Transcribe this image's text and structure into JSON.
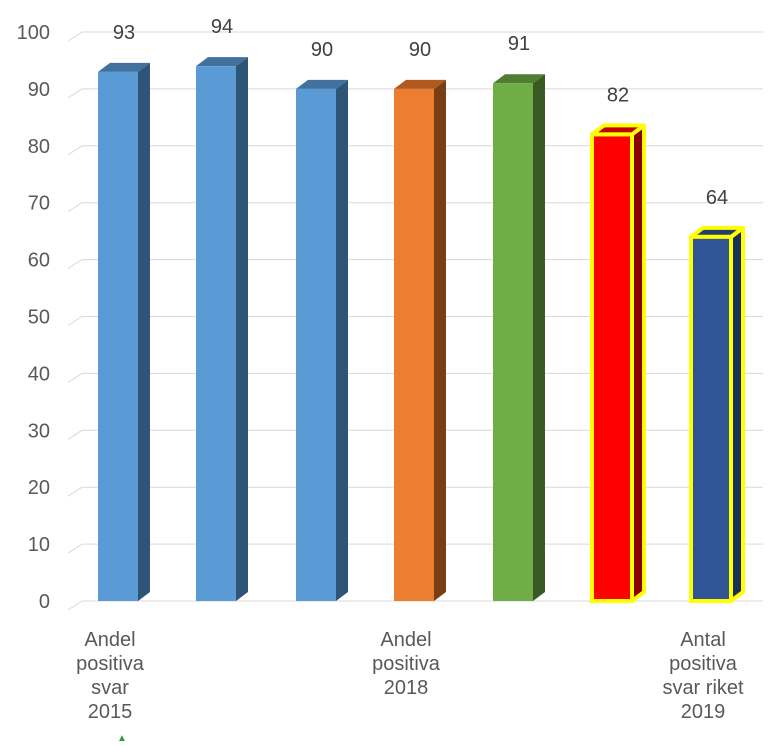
{
  "chart_data": {
    "type": "bar",
    "style": "3d-column",
    "ylim": [
      0,
      100
    ],
    "yticks": [
      0,
      10,
      20,
      30,
      40,
      50,
      60,
      70,
      80,
      90,
      100
    ],
    "grid": true,
    "bars": [
      {
        "value": 93,
        "color": "#5b9bd5",
        "side": "#2e5477",
        "top": "#41719c",
        "outline": ""
      },
      {
        "value": 94,
        "color": "#5b9bd5",
        "side": "#2e5477",
        "top": "#41719c",
        "outline": ""
      },
      {
        "value": 90,
        "color": "#5b9bd5",
        "side": "#2e5477",
        "top": "#41719c",
        "outline": ""
      },
      {
        "value": 90,
        "color": "#ed7d31",
        "side": "#7a3d14",
        "top": "#b05a1f",
        "outline": ""
      },
      {
        "value": 91,
        "color": "#70ad47",
        "side": "#3a5a24",
        "top": "#507d32",
        "outline": ""
      },
      {
        "value": 82,
        "color": "#ff0000",
        "side": "#8b0000",
        "top": "#c00000",
        "outline": "#ffff00"
      },
      {
        "value": 64,
        "color": "#2f5597",
        "side": "#1a2f55",
        "top": "#22406e",
        "outline": "#ffff00"
      }
    ],
    "category_labels": [
      {
        "text": "Andel\npositiva\nsvar\n2015",
        "bar_index": 0
      },
      {
        "text": "Andel\npositiva\n2018",
        "bar_index": 3
      },
      {
        "text": "Antal\npositiva\nsvar riket\n2019",
        "bar_index": 6
      }
    ]
  }
}
